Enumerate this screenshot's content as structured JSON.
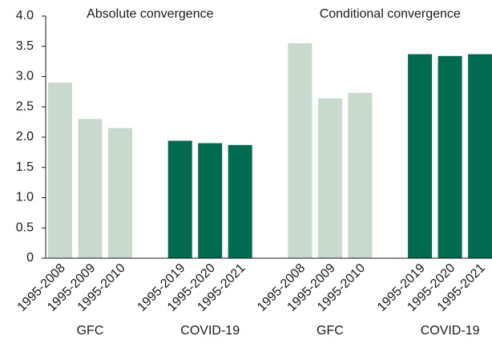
{
  "chart_data": {
    "type": "bar",
    "ylim": [
      0,
      4
    ],
    "yticks": [
      0,
      0.5,
      {
        "value": 1,
        "label": "1.0"
      },
      1.5,
      {
        "value": 2,
        "label": "2.0"
      },
      2.5,
      {
        "value": 3,
        "label": "3.0"
      },
      3.5,
      {
        "value": 4,
        "label": "4.0"
      }
    ],
    "panels": [
      {
        "title": "Absolute convergence",
        "groups": [
          {
            "label": "GFC",
            "color": "#c8d9cd",
            "categories": [
              "1995-2008",
              "1995-2009",
              "1995-2010"
            ],
            "values": [
              2.9,
              2.3,
              2.15
            ]
          },
          {
            "label": "COVID-19",
            "color": "#006b4f",
            "categories": [
              "1995-2019",
              "1995-2020",
              "1995-2021"
            ],
            "values": [
              1.94,
              1.9,
              1.87
            ]
          }
        ]
      },
      {
        "title": "Conditional convergence",
        "groups": [
          {
            "label": "GFC",
            "color": "#c8d9cd",
            "categories": [
              "1995-2008",
              "1995-2009",
              "1995-2010"
            ],
            "values": [
              3.55,
              2.64,
              2.73
            ]
          },
          {
            "label": "COVID-19",
            "color": "#006b4f",
            "categories": [
              "1995-2019",
              "1995-2020",
              "1995-2021"
            ],
            "values": [
              3.37,
              3.34,
              3.37
            ]
          }
        ]
      }
    ]
  }
}
